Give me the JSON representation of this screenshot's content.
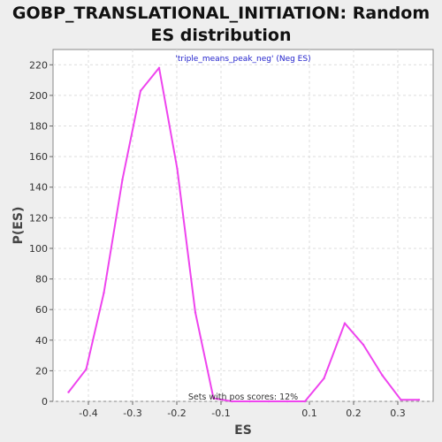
{
  "chart_data": {
    "type": "line",
    "title_lines": [
      "GOBP_TRANSLATIONAL_INITIATION: Random",
      "ES distribution"
    ],
    "xlabel": "ES",
    "ylabel": "P(ES)",
    "xlim": [
      -0.48,
      0.38
    ],
    "ylim": [
      0,
      230
    ],
    "x_ticks": [
      -0.4,
      -0.3,
      -0.2,
      -0.1,
      0.1,
      0.2,
      0.3
    ],
    "x_tick_labels": [
      "-0.4",
      "-0.3",
      "-0.2",
      "-0.1",
      "0.1",
      "0.2",
      "0.3"
    ],
    "y_ticks": [
      0,
      20,
      40,
      60,
      80,
      100,
      120,
      140,
      160,
      180,
      200,
      220
    ],
    "y_tick_labels": [
      "0",
      "20",
      "40",
      "60",
      "80",
      "100",
      "120",
      "140",
      "160",
      "180",
      "200",
      "220"
    ],
    "grid": true,
    "legend_position": "top-center",
    "annotation": "Sets with pos scores: 12%",
    "series": [
      {
        "name": "'triple_means_peak_neg' (Neg ES)",
        "color": "#ee44ee",
        "x": [
          -0.445,
          -0.405,
          -0.365,
          -0.323,
          -0.282,
          -0.24,
          -0.199,
          -0.158,
          -0.117,
          -0.075,
          -0.035,
          0.008,
          0.05,
          0.09,
          0.133,
          0.18,
          0.222,
          0.265,
          0.307,
          0.348
        ],
        "y": [
          6,
          21,
          71,
          145,
          203,
          218,
          152,
          58,
          2,
          0,
          0,
          0,
          0,
          0,
          15,
          51,
          37,
          17,
          1,
          1
        ]
      }
    ]
  }
}
